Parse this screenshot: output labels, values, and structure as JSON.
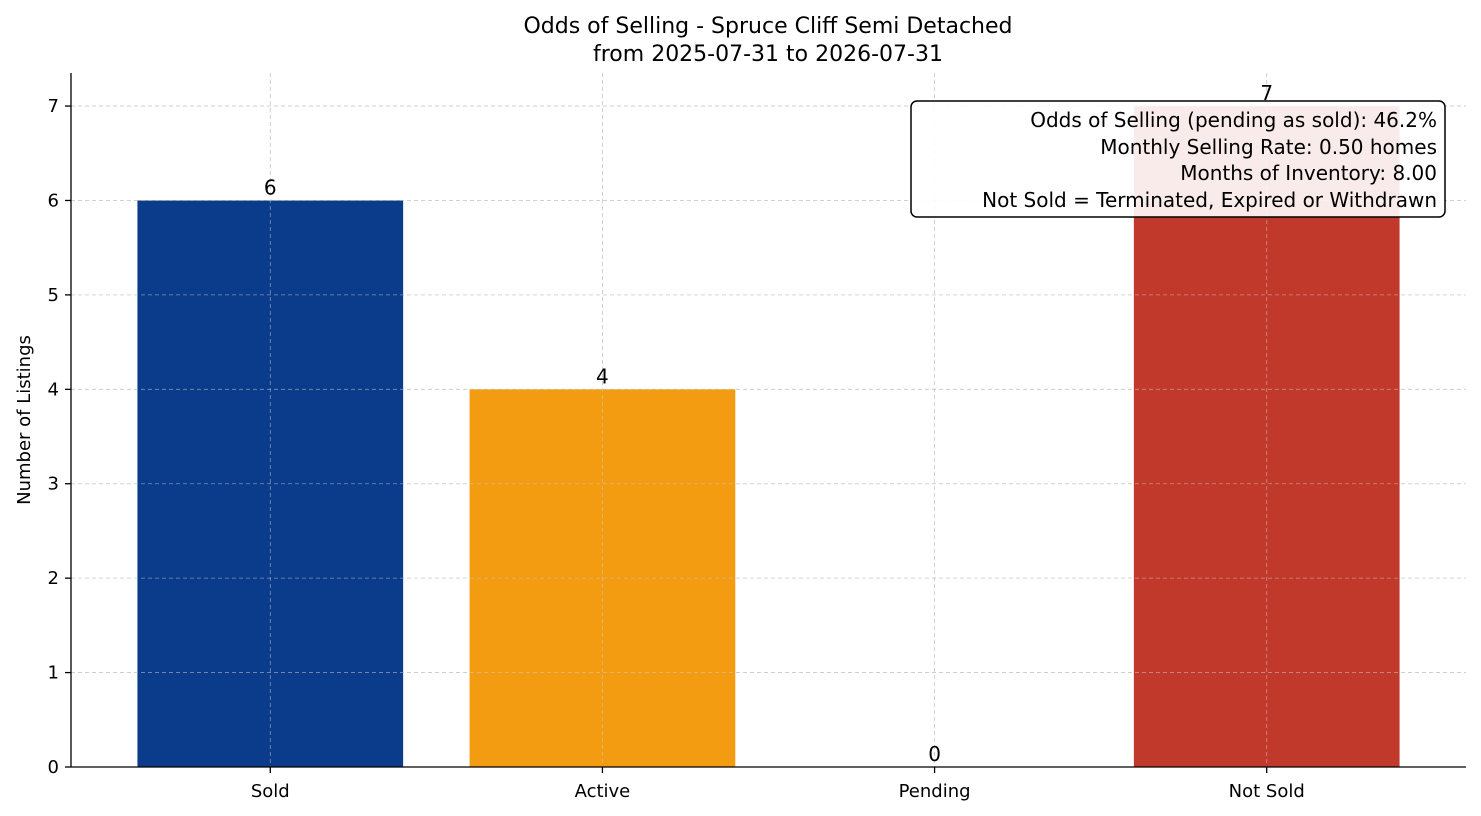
{
  "chart_data": {
    "type": "bar",
    "title": "Odds of Selling - Spruce Cliff Semi Detached",
    "subtitle": "from 2025-07-31 to 2026-07-31",
    "xlabel": "",
    "ylabel": "Number of Listings",
    "categories": [
      "Sold",
      "Active",
      "Pending",
      "Not Sold"
    ],
    "values": [
      6,
      4,
      0,
      7
    ],
    "data_labels": [
      "6",
      "4",
      "0",
      "7"
    ],
    "colors": [
      "#0b3c8c",
      "#f39c12",
      "#2e86c1",
      "#c0392b"
    ],
    "ylim": [
      0,
      7.35
    ],
    "yticks": [
      "0",
      "1",
      "2",
      "3",
      "4",
      "5",
      "6",
      "7"
    ],
    "grid": true,
    "legend": null,
    "annotation_box": {
      "position": "top-right",
      "lines": [
        "Odds of Selling (pending as sold): 46.2%",
        "Monthly Selling Rate: 0.50 homes",
        "Months of Inventory: 8.00",
        "Not Sold = Terminated, Expired or Withdrawn"
      ]
    }
  }
}
